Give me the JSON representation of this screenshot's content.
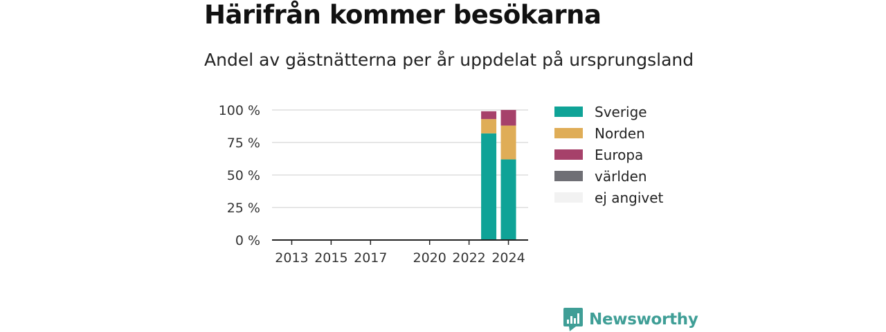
{
  "title": "Härifrån kommer besökarna",
  "subtitle": "Andel av gästnätterna per år uppdelat på ursprungsland",
  "brand": {
    "name": "Newsworthy",
    "color": "#3f9e96"
  },
  "chart_data": {
    "type": "bar",
    "stacked": true,
    "x_domain": [
      2012,
      2025
    ],
    "x_ticks": [
      2013,
      2015,
      2017,
      2020,
      2022,
      2024
    ],
    "y_ticks": [
      0,
      25,
      50,
      75,
      100
    ],
    "y_tick_labels": [
      "0 %",
      "25 %",
      "50 %",
      "75 %",
      "100 %"
    ],
    "ylim": [
      0,
      100
    ],
    "grid": true,
    "legend_position": "right",
    "categories": [
      2023,
      2024
    ],
    "series": [
      {
        "name": "Sverige",
        "color": "#0fa397",
        "values": [
          82,
          62
        ]
      },
      {
        "name": "Norden",
        "color": "#dfad57",
        "values": [
          11,
          26
        ]
      },
      {
        "name": "Europa",
        "color": "#a6416a",
        "values": [
          6,
          12
        ]
      },
      {
        "name": "världen",
        "color": "#6f6f75",
        "values": [
          0,
          0
        ]
      },
      {
        "name": "ej angivet",
        "color": "#f2f2f2",
        "values": [
          0,
          0
        ]
      }
    ]
  }
}
